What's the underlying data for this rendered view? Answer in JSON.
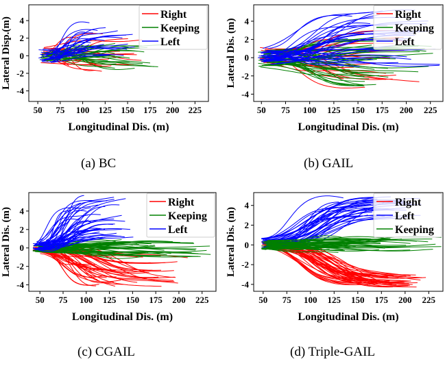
{
  "captions": {
    "a": "(a)  BC",
    "b": "(b)  GAIL",
    "c": "(c)  CGAIL",
    "d": "(d)  Triple-GAIL"
  },
  "colors": {
    "Right": "#ff0000",
    "Keeping": "#008000",
    "Left": "#0000ff"
  },
  "chart_data": [
    {
      "id": "a",
      "type": "line",
      "title": "",
      "xlabel": "Longitudinal Dis. (m)",
      "ylabel": "Lateral Disp.(m)",
      "xlim": [
        40,
        240
      ],
      "ylim": [
        -5.2,
        5.8
      ],
      "xticks": [
        50,
        75,
        100,
        125,
        150,
        175,
        200,
        225
      ],
      "yticks": [
        -4,
        -2,
        0,
        2,
        4
      ],
      "legend_order": [
        "Right",
        "Keeping",
        "Left"
      ],
      "legend_position": "top-right",
      "series": [
        {
          "name": "Right",
          "count": 24,
          "x_start": [
            52,
            66
          ],
          "x_end": [
            80,
            170
          ],
          "y_start": [
            -0.9,
            0.9
          ],
          "y_end": [
            -1.8,
            2.6
          ]
        },
        {
          "name": "Keeping",
          "count": 30,
          "x_start": [
            52,
            72
          ],
          "x_end": [
            95,
            188
          ],
          "y_start": [
            -0.7,
            0.7
          ],
          "y_end": [
            -1.5,
            1.4
          ]
        },
        {
          "name": "Left",
          "count": 24,
          "x_start": [
            50,
            72
          ],
          "x_end": [
            100,
            160
          ],
          "y_start": [
            -0.8,
            0.8
          ],
          "y_end": [
            0.0,
            3.8
          ]
        }
      ]
    },
    {
      "id": "b",
      "type": "line",
      "title": "",
      "xlabel": "Longitudinal Dis. (m)",
      "ylabel": "Lateral Dis. (m)",
      "xlim": [
        42,
        238
      ],
      "ylim": [
        -4.8,
        5.8
      ],
      "xticks": [
        50,
        75,
        100,
        125,
        150,
        175,
        200,
        225
      ],
      "yticks": [
        -4,
        -2,
        0,
        2,
        4
      ],
      "legend_order": [
        "Right",
        "Keeping",
        "Left"
      ],
      "legend_position": "top-right",
      "series": [
        {
          "name": "Right",
          "count": 28,
          "x_start": [
            48,
            65
          ],
          "x_end": [
            120,
            215
          ],
          "y_start": [
            -0.6,
            1.2
          ],
          "y_end": [
            -3.4,
            3.0
          ]
        },
        {
          "name": "Keeping",
          "count": 40,
          "x_start": [
            46,
            62
          ],
          "x_end": [
            130,
            238
          ],
          "y_start": [
            -1.0,
            1.0
          ],
          "y_end": [
            -3.2,
            2.2
          ]
        },
        {
          "name": "Left",
          "count": 36,
          "x_start": [
            46,
            62
          ],
          "x_end": [
            130,
            238
          ],
          "y_start": [
            -0.8,
            1.0
          ],
          "y_end": [
            -1.0,
            5.4
          ]
        }
      ]
    },
    {
      "id": "c",
      "type": "line",
      "title": "",
      "xlabel": "Longitudinal Dis. (m)",
      "ylabel": "Lateral Dis. (m)",
      "xlim": [
        38,
        240
      ],
      "ylim": [
        -4.7,
        6.0
      ],
      "xticks": [
        50,
        75,
        100,
        125,
        150,
        175,
        200,
        225
      ],
      "yticks": [
        -4,
        -2,
        0,
        2,
        4
      ],
      "legend_order": [
        "Right",
        "Keeping",
        "Left"
      ],
      "legend_position": "top-right",
      "series": [
        {
          "name": "Right",
          "count": 40,
          "x_start": [
            42,
            58
          ],
          "x_end": [
            100,
            210
          ],
          "y_start": [
            -0.4,
            0.4
          ],
          "y_end": [
            -4.4,
            -0.6
          ]
        },
        {
          "name": "Keeping",
          "count": 40,
          "x_start": [
            42,
            58
          ],
          "x_end": [
            130,
            240
          ],
          "y_start": [
            -0.4,
            0.4
          ],
          "y_end": [
            -1.0,
            1.0
          ]
        },
        {
          "name": "Left",
          "count": 45,
          "x_start": [
            42,
            58
          ],
          "x_end": [
            80,
            155
          ],
          "y_start": [
            -0.4,
            0.5
          ],
          "y_end": [
            0.8,
            6.0
          ]
        }
      ]
    },
    {
      "id": "d",
      "type": "line",
      "title": "",
      "xlabel": "Longitudinal Dis. (m)",
      "ylabel": "Lateral Dis. (m)",
      "xlim": [
        40,
        240
      ],
      "ylim": [
        -4.7,
        5.3
      ],
      "xticks": [
        50,
        75,
        100,
        125,
        150,
        175,
        200,
        225
      ],
      "yticks": [
        -4,
        -2,
        0,
        2,
        4
      ],
      "legend_order": [
        "Right",
        "Left",
        "Keeping"
      ],
      "legend_position": "top-right",
      "series": [
        {
          "name": "Right",
          "count": 45,
          "x_start": [
            48,
            56
          ],
          "x_end": [
            150,
            222
          ],
          "y_start": [
            -0.3,
            0.5
          ],
          "y_end": [
            -4.3,
            -3.0
          ]
        },
        {
          "name": "Left",
          "count": 35,
          "x_start": [
            48,
            56
          ],
          "x_end": [
            130,
            218
          ],
          "y_start": [
            -0.3,
            0.5
          ],
          "y_end": [
            2.8,
            5.0
          ]
        },
        {
          "name": "Keeping",
          "count": 40,
          "x_start": [
            48,
            56
          ],
          "x_end": [
            120,
            240
          ],
          "y_start": [
            -0.5,
            0.5
          ],
          "y_end": [
            -0.8,
            0.8
          ]
        }
      ]
    }
  ]
}
